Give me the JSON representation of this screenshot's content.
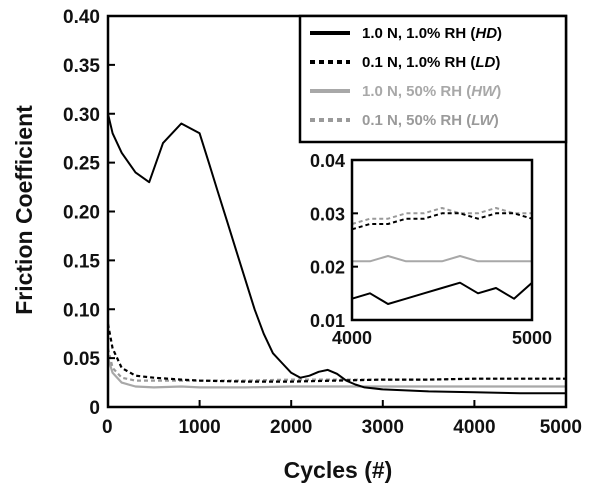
{
  "chart_data": {
    "type": "line",
    "xlabel": "Cycles (#)",
    "ylabel": "Friction Coefficient",
    "xlim": [
      0,
      5000
    ],
    "ylim": [
      0,
      0.4
    ],
    "xticks": [
      "0",
      "1000",
      "2000",
      "3000",
      "4000",
      "5000"
    ],
    "yticks": [
      "0",
      "0.05",
      "0.10",
      "0.15",
      "0.20",
      "0.25",
      "0.30",
      "0.35",
      "0.40"
    ],
    "legend_position": "top-right",
    "series": [
      {
        "name_prefix": "1.0 N, 1.0% RH (",
        "code": "HD",
        "name_suffix": ")",
        "color": "#000000",
        "dash": "solid",
        "x": [
          0,
          50,
          150,
          300,
          450,
          600,
          800,
          1000,
          1100,
          1200,
          1300,
          1400,
          1500,
          1600,
          1700,
          1800,
          1900,
          2000,
          2100,
          2200,
          2300,
          2400,
          2500,
          2600,
          2700,
          2800,
          3000,
          3500,
          4000,
          4500,
          5000
        ],
        "y": [
          0.3,
          0.28,
          0.26,
          0.24,
          0.23,
          0.27,
          0.29,
          0.28,
          0.25,
          0.22,
          0.19,
          0.16,
          0.13,
          0.1,
          0.075,
          0.055,
          0.045,
          0.035,
          0.03,
          0.032,
          0.036,
          0.038,
          0.034,
          0.027,
          0.023,
          0.02,
          0.018,
          0.016,
          0.015,
          0.014,
          0.014
        ]
      },
      {
        "name_prefix": "0.1 N, 1.0% RH (",
        "code": "LD",
        "name_suffix": ")",
        "color": "#000000",
        "dash": "dotted",
        "x": [
          0,
          50,
          150,
          300,
          500,
          800,
          1000,
          1500,
          2000,
          2500,
          3000,
          3500,
          4000,
          4500,
          5000
        ],
        "y": [
          0.085,
          0.06,
          0.04,
          0.032,
          0.03,
          0.028,
          0.027,
          0.026,
          0.026,
          0.027,
          0.028,
          0.028,
          0.029,
          0.029,
          0.029
        ]
      },
      {
        "name_prefix": "1.0 N, 50% RH (",
        "code": "HW",
        "name_suffix": ")",
        "color": "#a8a8a8",
        "dash": "solid",
        "x": [
          0,
          50,
          150,
          300,
          500,
          800,
          1000,
          1500,
          2000,
          2500,
          3000,
          3500,
          4000,
          4500,
          5000
        ],
        "y": [
          0.05,
          0.035,
          0.025,
          0.021,
          0.02,
          0.021,
          0.02,
          0.02,
          0.021,
          0.021,
          0.021,
          0.021,
          0.021,
          0.021,
          0.021
        ]
      },
      {
        "name_prefix": "0.1 N, 50% RH (",
        "code": "LW",
        "name_suffix": ")",
        "color": "#9a9a9a",
        "dash": "dotted",
        "x": [
          0,
          50,
          150,
          300,
          500,
          800,
          1000,
          1500,
          2000,
          2500,
          3000,
          3500,
          4000,
          4500,
          5000
        ],
        "y": [
          0.06,
          0.04,
          0.03,
          0.027,
          0.027,
          0.027,
          0.027,
          0.027,
          0.028,
          0.028,
          0.028,
          0.028,
          0.029,
          0.029,
          0.029
        ]
      }
    ],
    "inset": {
      "xlim": [
        4000,
        5000
      ],
      "ylim": [
        0.01,
        0.04
      ],
      "xticks": [
        "4000",
        "5000"
      ],
      "yticks": [
        "0.01",
        "0.02",
        "0.03",
        "0.04"
      ],
      "series": [
        {
          "code": "HD",
          "x": [
            4000,
            4100,
            4200,
            4300,
            4400,
            4500,
            4600,
            4700,
            4800,
            4900,
            5000
          ],
          "y": [
            0.014,
            0.015,
            0.013,
            0.014,
            0.015,
            0.016,
            0.017,
            0.015,
            0.016,
            0.014,
            0.017
          ]
        },
        {
          "code": "LD",
          "x": [
            4000,
            4100,
            4200,
            4300,
            4400,
            4500,
            4600,
            4700,
            4800,
            4900,
            5000
          ],
          "y": [
            0.027,
            0.028,
            0.028,
            0.029,
            0.029,
            0.03,
            0.03,
            0.029,
            0.03,
            0.03,
            0.029
          ]
        },
        {
          "code": "HW",
          "x": [
            4000,
            4100,
            4200,
            4300,
            4400,
            4500,
            4600,
            4700,
            4800,
            4900,
            5000
          ],
          "y": [
            0.021,
            0.021,
            0.022,
            0.021,
            0.021,
            0.021,
            0.022,
            0.021,
            0.021,
            0.021,
            0.021
          ]
        },
        {
          "code": "LW",
          "x": [
            4000,
            4100,
            4200,
            4300,
            4400,
            4500,
            4600,
            4700,
            4800,
            4900,
            5000
          ],
          "y": [
            0.028,
            0.029,
            0.029,
            0.03,
            0.03,
            0.031,
            0.03,
            0.03,
            0.031,
            0.03,
            0.03
          ]
        }
      ]
    }
  }
}
